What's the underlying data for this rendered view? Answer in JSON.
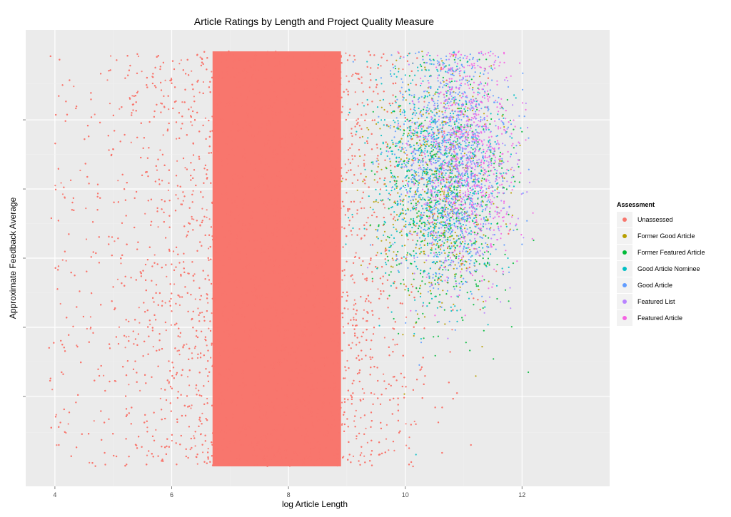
{
  "chart_data": {
    "type": "scatter",
    "title": "Article Ratings by Length and Project Quality Measure",
    "xlabel": "log Article Length",
    "ylabel": "Approximate Feedback Average",
    "xlim": [
      3.5,
      13.5
    ],
    "ylim": [
      0,
      1
    ],
    "x_ticks": [
      4,
      6,
      8,
      10,
      12
    ],
    "x_tick_labels": [
      "4",
      "6",
      "8",
      "10",
      "12"
    ],
    "y_ticks_count": 5,
    "y_tick_labels_shown": false,
    "grid": true,
    "legend": {
      "title": "Assessment",
      "placement": "right"
    },
    "series": [
      {
        "name": "Unassessed",
        "color": "#F8766D",
        "x_range": [
          3.9,
          13.0
        ],
        "x_center": 7.8,
        "x_spread": 1.2,
        "y_center": 0.6
      },
      {
        "name": "Former Good Article",
        "color": "#B79F00",
        "x_range": [
          8.5,
          12.2
        ],
        "x_center": 10.6,
        "x_spread": 0.55,
        "y_center": 0.65
      },
      {
        "name": "Former Featured Article",
        "color": "#00BA38",
        "x_range": [
          8.5,
          12.2
        ],
        "x_center": 10.7,
        "x_spread": 0.55,
        "y_center": 0.65
      },
      {
        "name": "Good Article Nominee",
        "color": "#00BFC4",
        "x_range": [
          8.5,
          12.2
        ],
        "x_center": 10.5,
        "x_spread": 0.55,
        "y_center": 0.7
      },
      {
        "name": "Good Article",
        "color": "#619CFF",
        "x_range": [
          8.8,
          12.2
        ],
        "x_center": 10.8,
        "x_spread": 0.5,
        "y_center": 0.72
      },
      {
        "name": "Featured List",
        "color": "#B983FF",
        "x_range": [
          9.0,
          12.2
        ],
        "x_center": 10.9,
        "x_spread": 0.5,
        "y_center": 0.72
      },
      {
        "name": "Featured Article",
        "color": "#F564E3",
        "x_range": [
          9.0,
          12.2
        ],
        "x_center": 11.1,
        "x_spread": 0.45,
        "y_center": 0.75
      }
    ]
  },
  "colors": {
    "panel_bg": "#EBEBEB",
    "grid_major": "#FFFFFF",
    "grid_minor": "#F2F2F2",
    "legend_key_bg": "#F2F2F2"
  }
}
